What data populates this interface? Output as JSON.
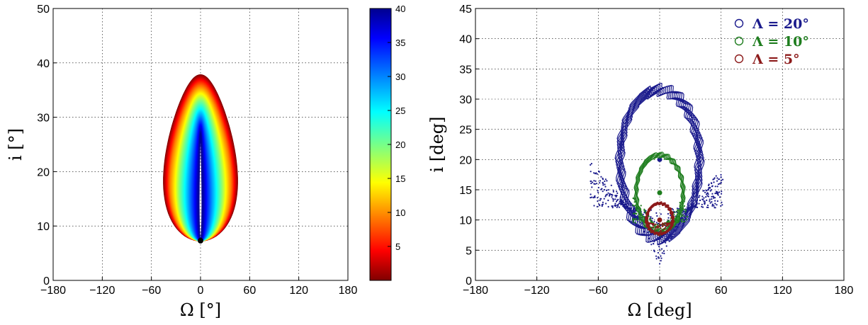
{
  "chart_data": [
    {
      "type": "heatmap",
      "subtype": "nested-contour-families",
      "title": "",
      "xlabel": "Ω [°]",
      "ylabel": "i [°]",
      "xlim": [
        -180,
        180
      ],
      "ylim": [
        0,
        50
      ],
      "xticks": [
        -180,
        -120,
        -60,
        0,
        60,
        120,
        180
      ],
      "yticks": [
        0,
        10,
        20,
        30,
        40,
        50
      ],
      "grid": true,
      "colorbar": {
        "range": [
          0,
          40
        ],
        "ticks": [
          5,
          10,
          15,
          20,
          25,
          30,
          35,
          40
        ],
        "colormap": "jet",
        "placement": "right"
      },
      "family": {
        "apex_i": 7.3,
        "apex_omega": 0,
        "levels": [
          {
            "c": 1,
            "top_i": 27.0,
            "half_width": 2
          },
          {
            "c": 5,
            "top_i": 28.5,
            "half_width": 6
          },
          {
            "c": 10,
            "top_i": 30.0,
            "half_width": 12
          },
          {
            "c": 15,
            "top_i": 31.5,
            "half_width": 18
          },
          {
            "c": 20,
            "top_i": 33.0,
            "half_width": 24
          },
          {
            "c": 25,
            "top_i": 34.3,
            "half_width": 29
          },
          {
            "c": 30,
            "top_i": 35.6,
            "half_width": 35
          },
          {
            "c": 35,
            "top_i": 36.8,
            "half_width": 39
          },
          {
            "c": 40,
            "top_i": 37.8,
            "half_width": 43
          }
        ]
      },
      "marker": {
        "omega": 0,
        "i": 7.3,
        "color": "#000000"
      }
    },
    {
      "type": "scatter",
      "title": "",
      "xlabel": "Ω [deg]",
      "ylabel": "i [deg]",
      "xlim": [
        -180,
        180
      ],
      "ylim": [
        0,
        45
      ],
      "xticks": [
        -180,
        -120,
        -60,
        0,
        60,
        120,
        180
      ],
      "yticks": [
        0,
        5,
        10,
        15,
        20,
        25,
        30,
        35,
        40,
        45
      ],
      "grid": true,
      "legend": {
        "placement": "top-right",
        "entries": [
          "Λ = 20°",
          "Λ = 10°",
          "Λ = 5°"
        ]
      },
      "series": [
        {
          "name": "Λ = 20°",
          "color": "#1a1a8c",
          "center": [
            0,
            20
          ],
          "half_width": 42,
          "top_i": 32.5,
          "bottom_i": 6,
          "scatter_min_i": 1.5,
          "scatter_omega": [
            -68,
            62
          ]
        },
        {
          "name": "Λ = 10°",
          "color": "#1e7d1e",
          "center": [
            0,
            14.5
          ],
          "half_width": 25,
          "top_i": 21.3,
          "bottom_i": 7.5,
          "scatter_min_i": 6.5,
          "scatter_omega": [
            -27,
            27
          ]
        },
        {
          "name": "Λ = 5°",
          "color": "#8c1a1a",
          "center": [
            0,
            10
          ],
          "half_width": 14,
          "top_i": 13,
          "bottom_i": 7.5,
          "scatter_min_i": 7,
          "scatter_omega": [
            -14,
            14
          ]
        }
      ]
    }
  ]
}
